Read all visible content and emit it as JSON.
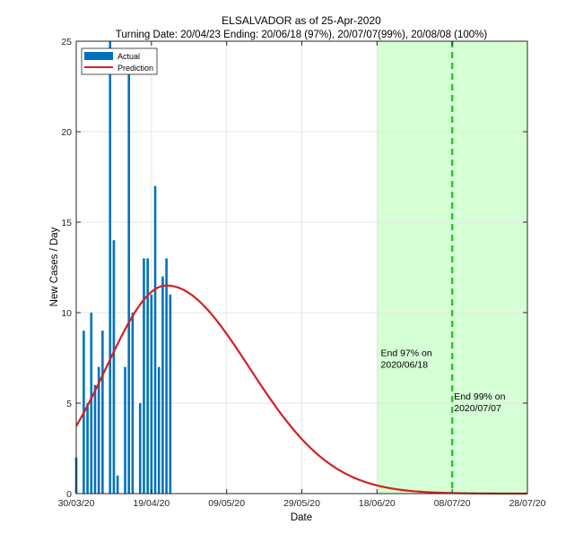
{
  "chart_data": {
    "type": "bar",
    "title": "ELSALVADOR as of 25-Apr-2020",
    "subtitle": "Turning Date: 20/04/23  Ending: 20/06/18 (97%), 20/07/07(99%), 20/08/08 (100%)",
    "xlabel": "Date",
    "ylabel": "New Cases / Day",
    "xlim": [
      0,
      120
    ],
    "ylim": [
      0,
      25
    ],
    "xticks": [
      0,
      20,
      40,
      60,
      80,
      100,
      120
    ],
    "xtick_labels": [
      "30/03/20",
      "19/04/20",
      "09/05/20",
      "29/05/20",
      "18/06/20",
      "08/07/20",
      "28/07/20"
    ],
    "yticks": [
      0,
      5,
      10,
      15,
      20,
      25
    ],
    "ytick_labels": [
      "0",
      "5",
      "10",
      "15",
      "20",
      "25"
    ],
    "grid": true,
    "legend_position": "top-left",
    "series": [
      {
        "name": "Actual",
        "kind": "bar",
        "color": "#0072BD",
        "x": [
          0,
          2,
          3,
          4,
          5,
          6,
          7,
          8,
          9,
          10,
          11,
          12,
          13,
          14,
          15,
          16,
          17,
          18,
          19,
          20,
          21,
          22,
          23,
          24,
          25
        ],
        "values": [
          2,
          9,
          5,
          10,
          6,
          7,
          9,
          0,
          25,
          14,
          1,
          0,
          7,
          24,
          10,
          0,
          5,
          13,
          13,
          11,
          17,
          7,
          12,
          13,
          11
        ]
      },
      {
        "name": "Prediction",
        "kind": "line",
        "color": "#D62020",
        "peak_day": 24,
        "peak_value": 11.5,
        "sigma_left": 16,
        "sigma_right": 22,
        "x_end": 120
      }
    ],
    "shaded_region": {
      "x_start": 80,
      "x_end": 120,
      "color": "#D5FFD5"
    },
    "vertical_lines": [
      {
        "x": 100,
        "color": "#22CC22",
        "style": "dashed"
      }
    ],
    "annotations": [
      {
        "x": 81,
        "y": 7.6,
        "lines": [
          "End 97% on",
          "2020/06/18"
        ]
      },
      {
        "x": 100.5,
        "y": 5.2,
        "lines": [
          "End 99% on",
          "2020/07/07"
        ]
      }
    ]
  }
}
